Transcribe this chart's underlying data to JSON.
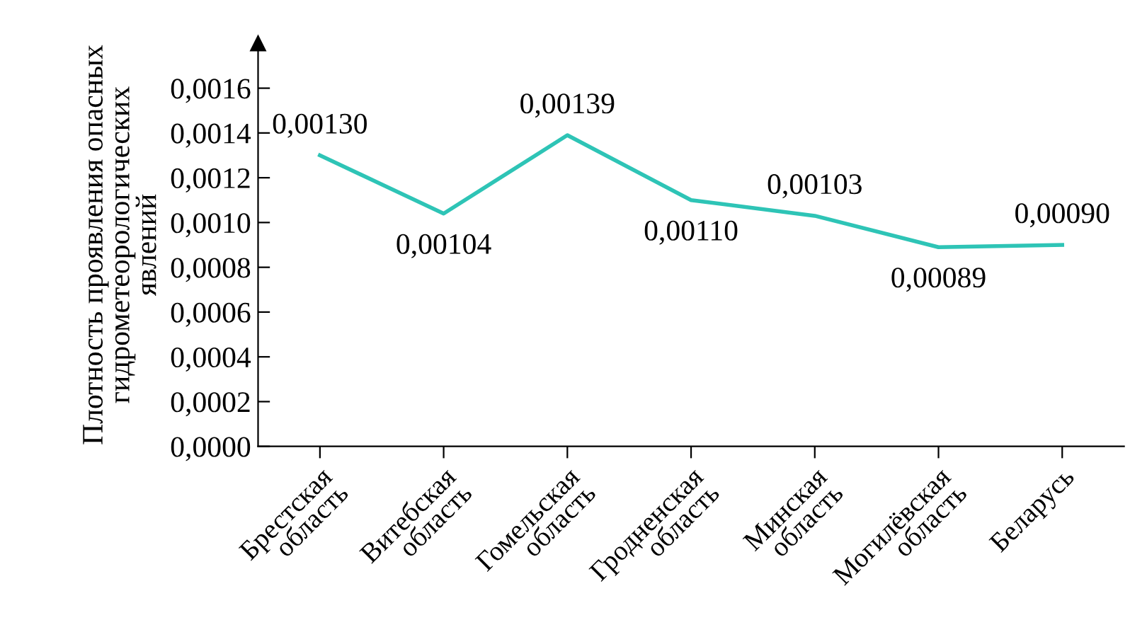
{
  "chart_data": {
    "type": "line",
    "ylabel": "Плотность проявления опасных\nгидрометеорологических\nявлений",
    "categories": [
      "Брестская\nобласть",
      "Витебская\nобласть",
      "Гомельская\nобласть",
      "Гродненская\nобласть",
      "Минская\nобласть",
      "Могилёвская\nобласть",
      "Беларусь"
    ],
    "series": [
      {
        "color": "#2ec4b6",
        "values": [
          0.0013,
          0.00104,
          0.00139,
          0.0011,
          0.00103,
          0.00089,
          0.0009
        ],
        "value_labels": [
          "0,00130",
          "0,00104",
          "0,00139",
          "0,00110",
          "0,00103",
          "0,00089",
          "0,00090"
        ]
      }
    ],
    "ylim": [
      0,
      0.0018
    ],
    "yticks": [
      {
        "value": 0,
        "label": "0,0000"
      },
      {
        "value": 0.0002,
        "label": "0,0002"
      },
      {
        "value": 0.0004,
        "label": "0,0004"
      },
      {
        "value": 0.0006,
        "label": "0,0006"
      },
      {
        "value": 0.0008,
        "label": "0,0008"
      },
      {
        "value": 0.001,
        "label": "0,0010"
      },
      {
        "value": 0.0012,
        "label": "0,0012"
      },
      {
        "value": 0.0014,
        "label": "0,0014"
      },
      {
        "value": 0.0016,
        "label": "0,0016"
      }
    ],
    "grid": false,
    "legend": false,
    "marker": "none",
    "line_style": "solid"
  }
}
